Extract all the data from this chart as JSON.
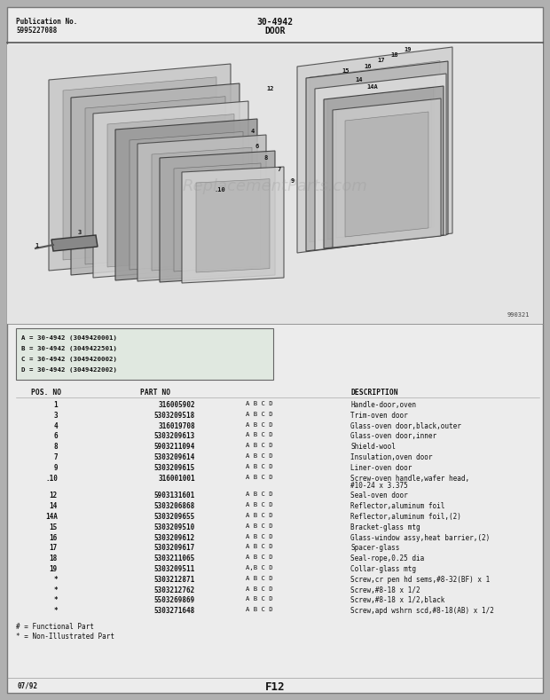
{
  "bg_color": "#b0b0b0",
  "page_bg": "#ececec",
  "header": {
    "pub_no_label": "Publication No.",
    "pub_no": "5995227088",
    "title": "30-4942",
    "subtitle": "DOOR"
  },
  "model_box_lines": [
    "A = 30-4942 (3049420001)",
    "B = 30-4942 (3049422501)",
    "C = 30-4942 (3049420002)",
    "D = 30-4942 (3049422002)"
  ],
  "parts": [
    [
      "1",
      "316005902",
      "A B C D",
      "Handle-door,oven"
    ],
    [
      "3",
      "5303209518",
      "A B C D",
      "Trim-oven door"
    ],
    [
      "4",
      "316019708",
      "A B C D",
      "Glass-oven door,black,outer"
    ],
    [
      "6",
      "5303209613",
      "A B C D",
      "Glass-oven door,inner"
    ],
    [
      "8",
      "5903211094",
      "A B C D",
      "Shield-wool"
    ],
    [
      "7",
      "5303209614",
      "A B C D",
      "Insulation,oven door"
    ],
    [
      "9",
      "5303209615",
      "A B C D",
      "Liner-oven door"
    ],
    [
      ".10",
      "316001001",
      "A B C D",
      "Screw-oven handle,wafer head,\n#10-24 x 3.375"
    ],
    [
      "12",
      "5903131601",
      "A B C D",
      "Seal-oven door"
    ],
    [
      "14",
      "5303206868",
      "A B C D",
      "Reflector,aluminum foil"
    ],
    [
      "14A",
      "5303209655",
      "A B C D",
      "Reflector,aluminum foil,(2)"
    ],
    [
      "15",
      "5303209510",
      "A B C D",
      "Bracket-glass mtg"
    ],
    [
      "16",
      "5303209612",
      "A B C D",
      "Glass-window assy,heat barrier,(2)"
    ],
    [
      "17",
      "5303209617",
      "A B C D",
      "Spacer-glass"
    ],
    [
      "18",
      "5303211065",
      "A B C D",
      "Seal-rope,0.25 dia"
    ],
    [
      "19",
      "5303209511",
      "A,B C D",
      "Collar-glass mtg"
    ],
    [
      "*",
      "5303212871",
      "A B C D",
      "Screw,cr pen hd sems,#8-32(BF) x 1"
    ],
    [
      "*",
      "5303212762",
      "A B C D",
      "Screw,#8-18 x 1/2"
    ],
    [
      "*",
      "5503269869",
      "A B C D",
      "Screw,#8-18 x 1/2,black"
    ],
    [
      "*",
      "5303271648",
      "A B C D",
      "Screw,apd wshrn scd,#8-18(AB) x 1/2"
    ]
  ],
  "footnotes": [
    "# = Functional Part",
    "* = Non-Illustrated Part"
  ],
  "footer_left": "07/92",
  "footer_center": "F12",
  "watermark": "ReplacementParts.com",
  "fig_ref": "990321"
}
